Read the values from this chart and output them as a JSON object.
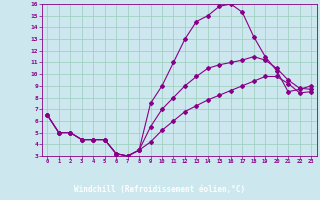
{
  "xlabel": "Windchill (Refroidissement éolien,°C)",
  "bg_color": "#cce8ee",
  "line_color": "#880088",
  "grid_color": "#99ccbb",
  "axis_label_bg": "#6633aa",
  "xlim": [
    -0.5,
    23.5
  ],
  "ylim": [
    3,
    16
  ],
  "xticks": [
    0,
    1,
    2,
    3,
    4,
    5,
    6,
    7,
    8,
    9,
    10,
    11,
    12,
    13,
    14,
    15,
    16,
    17,
    18,
    19,
    20,
    21,
    22,
    23
  ],
  "yticks": [
    3,
    4,
    5,
    6,
    7,
    8,
    9,
    10,
    11,
    12,
    13,
    14,
    15,
    16
  ],
  "curve1_x": [
    0,
    1,
    2,
    3,
    4,
    5,
    6,
    7,
    8,
    9,
    10,
    11,
    12,
    13,
    14,
    15,
    16,
    17,
    18,
    19,
    20,
    21,
    22,
    23
  ],
  "curve1_y": [
    6.5,
    5.0,
    5.0,
    4.4,
    4.4,
    4.4,
    3.2,
    3.0,
    3.5,
    7.5,
    9.0,
    11.0,
    13.0,
    14.5,
    15.0,
    15.8,
    16.0,
    15.3,
    13.2,
    11.5,
    10.3,
    8.5,
    8.7,
    9.0
  ],
  "curve2_x": [
    0,
    1,
    2,
    3,
    4,
    5,
    6,
    7,
    8,
    9,
    10,
    11,
    12,
    13,
    14,
    15,
    16,
    17,
    18,
    19,
    20,
    21,
    22,
    23
  ],
  "curve2_y": [
    6.5,
    5.0,
    5.0,
    4.4,
    4.4,
    4.4,
    3.2,
    3.0,
    3.5,
    5.5,
    7.0,
    8.0,
    9.0,
    9.8,
    10.5,
    10.8,
    11.0,
    11.2,
    11.5,
    11.2,
    10.5,
    9.5,
    8.8,
    8.7
  ],
  "curve3_x": [
    0,
    1,
    2,
    3,
    4,
    5,
    6,
    7,
    8,
    9,
    10,
    11,
    12,
    13,
    14,
    15,
    16,
    17,
    18,
    19,
    20,
    21,
    22,
    23
  ],
  "curve3_y": [
    6.5,
    5.0,
    5.0,
    4.4,
    4.4,
    4.4,
    3.2,
    3.0,
    3.5,
    4.2,
    5.2,
    6.0,
    6.8,
    7.3,
    7.8,
    8.2,
    8.6,
    9.0,
    9.4,
    9.8,
    9.8,
    9.2,
    8.4,
    8.5
  ]
}
